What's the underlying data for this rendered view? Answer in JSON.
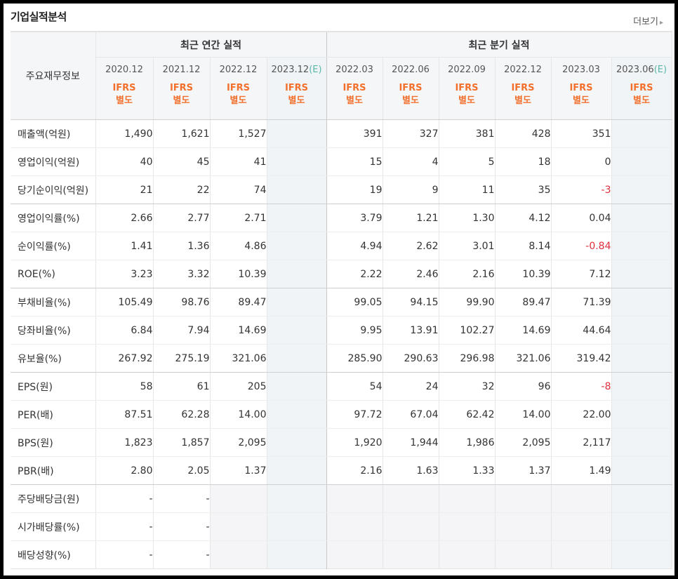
{
  "title": "기업실적분석",
  "more": {
    "label": "더보기",
    "icon": "caret-right-icon"
  },
  "header": {
    "row_label": "주요재무정보",
    "annual_group": "최근 연간 실적",
    "quarter_group": "최근 분기 실적",
    "estimate_suffix": "(E)",
    "ifrs_top": "IFRS",
    "ifrs_bottom": "별도",
    "periods": [
      {
        "label": "2020.12",
        "estimate": false
      },
      {
        "label": "2021.12",
        "estimate": false
      },
      {
        "label": "2022.12",
        "estimate": false
      },
      {
        "label": "2023.12",
        "estimate": true
      },
      {
        "label": "2022.03",
        "estimate": false
      },
      {
        "label": "2022.06",
        "estimate": false
      },
      {
        "label": "2022.09",
        "estimate": false
      },
      {
        "label": "2022.12",
        "estimate": false
      },
      {
        "label": "2023.03",
        "estimate": false
      },
      {
        "label": "2023.06",
        "estimate": true
      }
    ]
  },
  "colors": {
    "ifrs": "#f3702c",
    "negative": "#e12e3c",
    "estimate": "#59b7a7"
  },
  "rows": [
    {
      "label": "매출액(억원)",
      "values": [
        "1,490",
        "1,621",
        "1,527",
        "",
        "391",
        "327",
        "381",
        "428",
        "351",
        ""
      ]
    },
    {
      "label": "영업이익(억원)",
      "values": [
        "40",
        "45",
        "41",
        "",
        "15",
        "4",
        "5",
        "18",
        "0",
        ""
      ]
    },
    {
      "label": "당기순이익(억원)",
      "values": [
        "21",
        "22",
        "74",
        "",
        "19",
        "9",
        "11",
        "35",
        "-3",
        ""
      ]
    },
    {
      "label": "영업이익률(%)",
      "values": [
        "2.66",
        "2.77",
        "2.71",
        "",
        "3.79",
        "1.21",
        "1.30",
        "4.12",
        "0.04",
        ""
      ]
    },
    {
      "label": "순이익률(%)",
      "values": [
        "1.41",
        "1.36",
        "4.86",
        "",
        "4.94",
        "2.62",
        "3.01",
        "8.14",
        "-0.84",
        ""
      ]
    },
    {
      "label": "ROE(%)",
      "values": [
        "3.23",
        "3.32",
        "10.39",
        "",
        "2.22",
        "2.46",
        "2.16",
        "10.39",
        "7.12",
        ""
      ]
    },
    {
      "label": "부채비율(%)",
      "values": [
        "105.49",
        "98.76",
        "89.47",
        "",
        "99.05",
        "94.15",
        "99.90",
        "89.47",
        "71.39",
        ""
      ]
    },
    {
      "label": "당좌비율(%)",
      "values": [
        "6.84",
        "7.94",
        "14.69",
        "",
        "9.95",
        "13.91",
        "102.27",
        "14.69",
        "44.64",
        ""
      ]
    },
    {
      "label": "유보율(%)",
      "values": [
        "267.92",
        "275.19",
        "321.06",
        "",
        "285.90",
        "290.63",
        "296.98",
        "321.06",
        "319.42",
        ""
      ]
    },
    {
      "label": "EPS(원)",
      "values": [
        "58",
        "61",
        "205",
        "",
        "54",
        "24",
        "32",
        "96",
        "-8",
        ""
      ]
    },
    {
      "label": "PER(배)",
      "values": [
        "87.51",
        "62.28",
        "14.00",
        "",
        "97.72",
        "67.04",
        "62.42",
        "14.00",
        "22.00",
        ""
      ]
    },
    {
      "label": "BPS(원)",
      "values": [
        "1,823",
        "1,857",
        "2,095",
        "",
        "1,920",
        "1,944",
        "1,986",
        "2,095",
        "2,117",
        ""
      ]
    },
    {
      "label": "PBR(배)",
      "values": [
        "2.80",
        "2.05",
        "1.37",
        "",
        "2.16",
        "1.63",
        "1.33",
        "1.37",
        "1.49",
        ""
      ]
    },
    {
      "label": "주당배당금(원)",
      "values": [
        "-",
        "-",
        "",
        "",
        "",
        "",
        "",
        "",
        "",
        ""
      ]
    },
    {
      "label": "시가배당률(%)",
      "values": [
        "-",
        "-",
        "",
        "",
        "",
        "",
        "",
        "",
        "",
        ""
      ]
    },
    {
      "label": "배당성향(%)",
      "values": [
        "-",
        "-",
        "",
        "",
        "",
        "",
        "",
        "",
        "",
        ""
      ]
    }
  ]
}
